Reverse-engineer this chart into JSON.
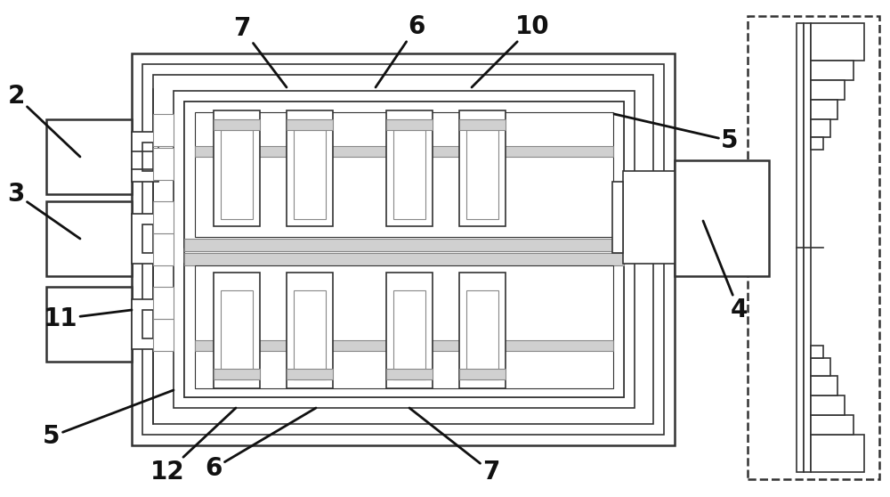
{
  "bg": "#ffffff",
  "lc": "#333333",
  "lc_gray": "#888888",
  "lw1": 1.8,
  "lw2": 1.2,
  "lw3": 0.8,
  "fc_white": "#ffffff",
  "fc_light": "#f5f5f5",
  "fc_gray": "#d0d0d0",
  "fc_mid": "#e8e8e8"
}
